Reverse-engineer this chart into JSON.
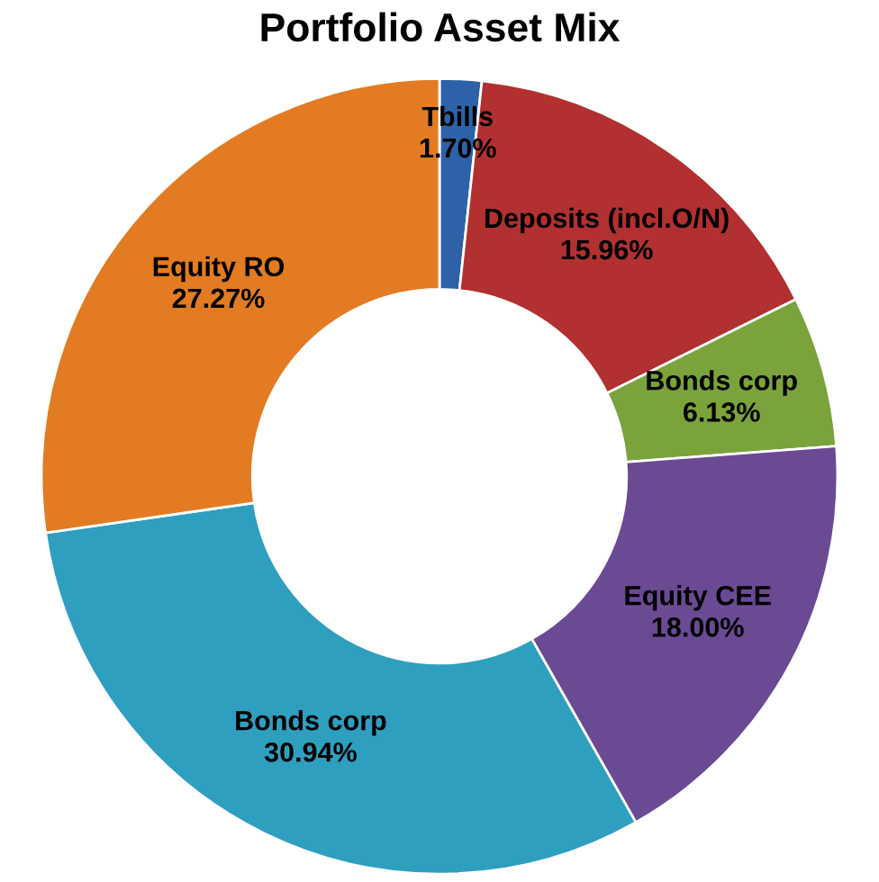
{
  "chart_data": {
    "type": "donut",
    "title": "Portfolio Asset Mix",
    "categories": [
      "Tbills",
      "Deposits (incl.O/N)",
      "Bonds corp",
      "Equity CEE",
      "Bonds corp",
      "Equity RO"
    ],
    "values": [
      1.7,
      15.96,
      6.13,
      18.0,
      30.94,
      27.27
    ],
    "colors": [
      "#2e62a8",
      "#b2302f",
      "#7aa33c",
      "#6b4a94",
      "#2f9fc0",
      "#e27b22"
    ],
    "value_labels": [
      "1.70%",
      "15.96%",
      "6.13%",
      "18.00%",
      "30.94%",
      "27.27%"
    ],
    "legend": false
  }
}
